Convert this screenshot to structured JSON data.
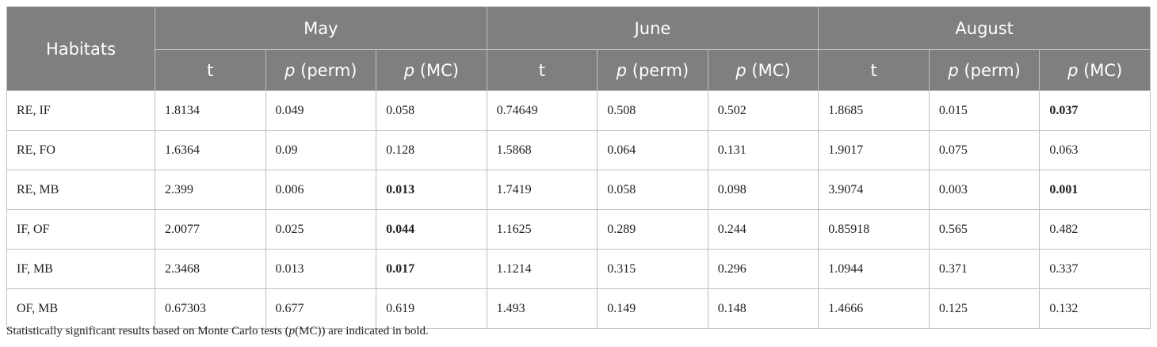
{
  "table": {
    "row_header": "Habitats",
    "groups": [
      "May",
      "June",
      "August"
    ],
    "subheaders": [
      [
        "t"
      ],
      [
        "p",
        " (perm)"
      ],
      [
        "p",
        " (MC)"
      ]
    ],
    "rows": [
      {
        "label": "RE, IF",
        "cells": [
          {
            "text": "1.8134"
          },
          {
            "text": "0.049"
          },
          {
            "text": "0.058"
          },
          {
            "text": "0.74649"
          },
          {
            "text": "0.508"
          },
          {
            "text": "0.502"
          },
          {
            "text": "1.8685"
          },
          {
            "text": "0.015"
          },
          {
            "text": "0.037",
            "bold": true
          }
        ]
      },
      {
        "label": "RE, FO",
        "cells": [
          {
            "text": "1.6364"
          },
          {
            "text": "0.09"
          },
          {
            "text": "0.128"
          },
          {
            "text": "1.5868"
          },
          {
            "text": "0.064"
          },
          {
            "text": "0.131"
          },
          {
            "text": "1.9017"
          },
          {
            "text": "0.075"
          },
          {
            "text": "0.063"
          }
        ]
      },
      {
        "label": "RE, MB",
        "cells": [
          {
            "text": "2.399"
          },
          {
            "text": "0.006"
          },
          {
            "text": "0.013",
            "bold": true
          },
          {
            "text": "1.7419"
          },
          {
            "text": "0.058"
          },
          {
            "text": "0.098"
          },
          {
            "text": "3.9074"
          },
          {
            "text": "0.003"
          },
          {
            "text": "0.001",
            "bold": true
          }
        ]
      },
      {
        "label": "IF, OF",
        "cells": [
          {
            "text": "2.0077"
          },
          {
            "text": "0.025"
          },
          {
            "text": "0.044",
            "bold": true
          },
          {
            "text": "1.1625"
          },
          {
            "text": "0.289"
          },
          {
            "text": "0.244"
          },
          {
            "text": "0.85918"
          },
          {
            "text": "0.565"
          },
          {
            "text": "0.482"
          }
        ]
      },
      {
        "label": "IF, MB",
        "cells": [
          {
            "text": "2.3468"
          },
          {
            "text": "0.013"
          },
          {
            "text": "0.017",
            "bold": true
          },
          {
            "text": "1.1214"
          },
          {
            "text": "0.315"
          },
          {
            "text": "0.296"
          },
          {
            "text": "1.0944"
          },
          {
            "text": "0.371"
          },
          {
            "text": "0.337"
          }
        ]
      },
      {
        "label": "OF, MB",
        "cells": [
          {
            "text": "0.67303"
          },
          {
            "text": "0.677"
          },
          {
            "text": "0.619"
          },
          {
            "text": "1.493"
          },
          {
            "text": "0.149"
          },
          {
            "text": "0.148"
          },
          {
            "text": "1.4666"
          },
          {
            "text": "0.125"
          },
          {
            "text": "0.132"
          }
        ]
      }
    ]
  },
  "footnote": [
    "Statistically significant results based on Monte Carlo tests (",
    "p",
    "(MC)) are indicated in bold."
  ]
}
